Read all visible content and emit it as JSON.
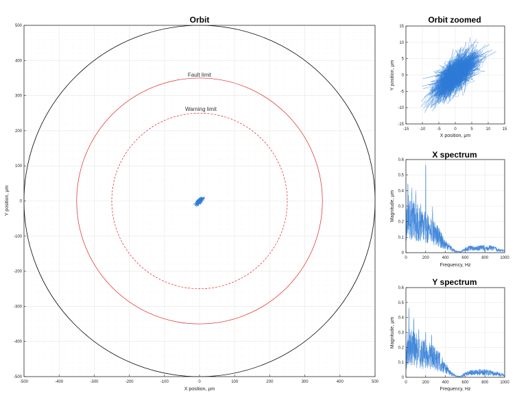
{
  "chart_data": [
    {
      "id": "orbit",
      "type": "scatter",
      "title": "Orbit",
      "xlabel": "X position, μm",
      "ylabel": "Y position, μm",
      "xlim": [
        -500,
        500
      ],
      "ylim": [
        -500,
        500
      ],
      "xticks": [
        -500,
        -400,
        -300,
        -200,
        -100,
        0,
        100,
        200,
        300,
        400,
        500
      ],
      "yticks": [
        -500,
        -400,
        -300,
        -200,
        -100,
        0,
        100,
        200,
        300,
        400,
        500
      ],
      "grid": true,
      "circles": [
        {
          "name": "outer-boundary",
          "radius": 500,
          "color": "#000000",
          "style": "solid"
        },
        {
          "name": "fault-limit",
          "label": "Fault limit",
          "radius": 350,
          "color": "#e02020",
          "style": "solid"
        },
        {
          "name": "warning-limit",
          "label": "Warning limit",
          "radius": 250,
          "color": "#e02020",
          "style": "dashed"
        }
      ],
      "orbit_cloud": {
        "center": [
          0,
          0
        ],
        "x_spread": 12,
        "y_spread": 12,
        "color": "#2e7bd6"
      }
    },
    {
      "id": "orbit-zoomed",
      "type": "scatter",
      "title": "Orbit zoomed",
      "xlabel": "X position, μm",
      "ylabel": "Y position, μm",
      "xlim": [
        -15,
        15
      ],
      "ylim": [
        -15,
        15
      ],
      "xticks": [
        -15,
        -10,
        -5,
        0,
        5,
        10,
        15
      ],
      "yticks": [
        -15,
        -10,
        -5,
        0,
        5,
        10,
        15
      ],
      "grid": true,
      "orbit_cloud": {
        "center": [
          0,
          0
        ],
        "x_spread": 11,
        "y_spread": 11,
        "correlation": 0.7,
        "color": "#2e7bd6"
      }
    },
    {
      "id": "x-spectrum",
      "type": "line",
      "title": "X spectrum",
      "xlabel": "Frequency, Hz",
      "ylabel": "Magnitude, μm",
      "xlim": [
        0,
        1000
      ],
      "ylim": [
        0,
        0.6
      ],
      "xticks": [
        0,
        200,
        400,
        600,
        800,
        1000
      ],
      "yticks": [
        0,
        0.1,
        0.2,
        0.3,
        0.4,
        0.5,
        0.6
      ],
      "grid": true,
      "color": "#2e7bd6",
      "envelope": {
        "x": [
          0,
          25,
          50,
          100,
          150,
          200,
          250,
          300,
          350,
          400,
          450,
          500,
          550,
          600,
          650,
          700,
          750,
          800,
          850,
          900,
          950,
          1000
        ],
        "y": [
          0.15,
          0.25,
          0.22,
          0.2,
          0.17,
          0.16,
          0.14,
          0.12,
          0.09,
          0.05,
          0.03,
          0.01,
          0.005,
          0.02,
          0.03,
          0.025,
          0.03,
          0.03,
          0.03,
          0.025,
          0.015,
          0.01
        ]
      },
      "peaks": [
        {
          "x": 20,
          "y": 0.47
        },
        {
          "x": 60,
          "y": 0.42
        },
        {
          "x": 100,
          "y": 0.4
        },
        {
          "x": 150,
          "y": 0.32
        },
        {
          "x": 200,
          "y": 0.58
        },
        {
          "x": 270,
          "y": 0.3
        }
      ]
    },
    {
      "id": "y-spectrum",
      "type": "line",
      "title": "Y spectrum",
      "xlabel": "Frequency, Hz",
      "ylabel": "Magnitude, μm",
      "xlim": [
        0,
        1000
      ],
      "ylim": [
        0,
        0.6
      ],
      "xticks": [
        0,
        200,
        400,
        600,
        800,
        1000
      ],
      "yticks": [
        0,
        0.1,
        0.2,
        0.3,
        0.4,
        0.5,
        0.6
      ],
      "grid": true,
      "color": "#2e7bd6",
      "envelope": {
        "x": [
          0,
          25,
          50,
          100,
          150,
          200,
          250,
          300,
          350,
          400,
          450,
          500,
          550,
          600,
          650,
          700,
          750,
          800,
          850,
          900,
          950,
          1000
        ],
        "y": [
          0.12,
          0.22,
          0.2,
          0.18,
          0.16,
          0.15,
          0.14,
          0.12,
          0.1,
          0.06,
          0.03,
          0.01,
          0.005,
          0.02,
          0.03,
          0.03,
          0.035,
          0.035,
          0.03,
          0.025,
          0.02,
          0.015
        ]
      },
      "peaks": [
        {
          "x": 30,
          "y": 0.48
        },
        {
          "x": 80,
          "y": 0.4
        },
        {
          "x": 130,
          "y": 0.33
        },
        {
          "x": 200,
          "y": 0.31
        },
        {
          "x": 260,
          "y": 0.3
        }
      ]
    }
  ]
}
